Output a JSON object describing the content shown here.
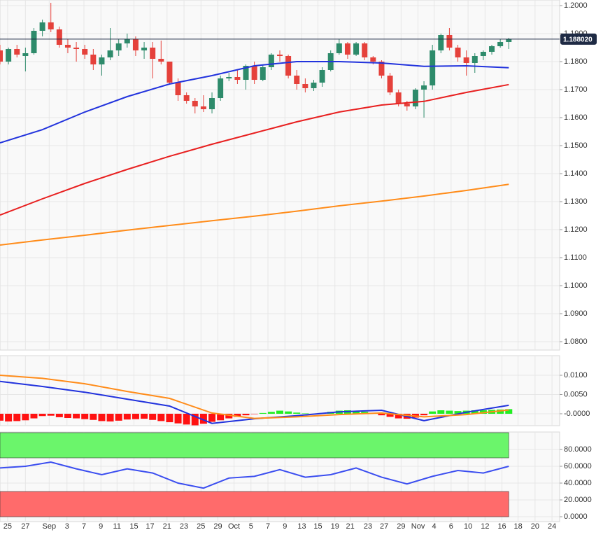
{
  "chart_data": [
    {
      "type": "candlestick",
      "xlim": [
        0,
        66
      ],
      "ylim": [
        1.077,
        1.202
      ],
      "yticks": [
        {
          "value": 1.2,
          "label": "1.2000"
        },
        {
          "value": 1.19,
          "label": "1.1900"
        },
        {
          "value": 1.18,
          "label": "1.1800"
        },
        {
          "value": 1.17,
          "label": "1.1700"
        },
        {
          "value": 1.16,
          "label": "1.1600"
        },
        {
          "value": 1.15,
          "label": "1.1500"
        },
        {
          "value": 1.14,
          "label": "1.1400"
        },
        {
          "value": 1.13,
          "label": "1.1300"
        },
        {
          "value": 1.12,
          "label": "1.1200"
        },
        {
          "value": 1.11,
          "label": "1.1100"
        },
        {
          "value": 1.1,
          "label": "1.1000"
        },
        {
          "value": 1.09,
          "label": "1.0900"
        },
        {
          "value": 1.08,
          "label": "1.0800"
        }
      ],
      "up_color": "#2e8b6b",
      "down_color": "#e5413b",
      "open": [
        1.184,
        1.18,
        1.1845,
        1.182,
        1.183,
        1.191,
        1.194,
        1.1915,
        1.186,
        1.185,
        1.1845,
        1.1825,
        1.179,
        1.1815,
        1.184,
        1.1865,
        1.188,
        1.184,
        1.185,
        1.181,
        1.18,
        1.1725,
        1.168,
        1.166,
        1.164,
        1.163,
        1.167,
        1.174,
        1.1745,
        1.1735,
        1.1785,
        1.1735,
        1.178,
        1.1825,
        1.182,
        1.175,
        1.172,
        1.1705,
        1.1725,
        1.177,
        1.183,
        1.1865,
        1.1825,
        1.1865,
        1.1815,
        1.18,
        1.175,
        1.169,
        1.165,
        1.164,
        1.17,
        1.1715,
        1.184,
        1.1895,
        1.185,
        1.1815,
        1.1795,
        1.182,
        1.1835,
        1.1855,
        1.187
      ],
      "high": [
        1.186,
        1.185,
        1.186,
        1.185,
        1.192,
        1.195,
        1.201,
        1.1925,
        1.188,
        1.187,
        1.186,
        1.1845,
        1.1825,
        1.192,
        1.188,
        1.19,
        1.189,
        1.187,
        1.187,
        1.1875,
        1.18,
        1.174,
        1.169,
        1.167,
        1.168,
        1.169,
        1.175,
        1.176,
        1.177,
        1.179,
        1.18,
        1.179,
        1.183,
        1.184,
        1.1825,
        1.177,
        1.174,
        1.1735,
        1.178,
        1.184,
        1.188,
        1.187,
        1.187,
        1.187,
        1.182,
        1.1805,
        1.176,
        1.17,
        1.166,
        1.1705,
        1.173,
        1.186,
        1.19,
        1.192,
        1.186,
        1.184,
        1.183,
        1.184,
        1.186,
        1.188,
        1.1885
      ],
      "low": [
        1.179,
        1.179,
        1.1815,
        1.1765,
        1.1825,
        1.189,
        1.1905,
        1.185,
        1.183,
        1.18,
        1.181,
        1.177,
        1.175,
        1.1805,
        1.182,
        1.185,
        1.182,
        1.181,
        1.174,
        1.179,
        1.172,
        1.166,
        1.165,
        1.1615,
        1.162,
        1.1615,
        1.166,
        1.173,
        1.172,
        1.17,
        1.172,
        1.173,
        1.177,
        1.18,
        1.174,
        1.17,
        1.169,
        1.1695,
        1.171,
        1.1765,
        1.1825,
        1.181,
        1.182,
        1.1805,
        1.179,
        1.174,
        1.168,
        1.164,
        1.1625,
        1.163,
        1.16,
        1.17,
        1.183,
        1.184,
        1.18,
        1.175,
        1.176,
        1.1805,
        1.1825,
        1.185,
        1.1845
      ],
      "close": [
        1.18,
        1.1845,
        1.1825,
        1.183,
        1.191,
        1.194,
        1.1915,
        1.186,
        1.185,
        1.1845,
        1.1825,
        1.179,
        1.1815,
        1.184,
        1.1865,
        1.188,
        1.184,
        1.185,
        1.181,
        1.18,
        1.1725,
        1.168,
        1.166,
        1.164,
        1.163,
        1.167,
        1.174,
        1.1745,
        1.1735,
        1.1785,
        1.1735,
        1.178,
        1.1825,
        1.182,
        1.175,
        1.172,
        1.1705,
        1.1725,
        1.177,
        1.183,
        1.1865,
        1.1825,
        1.1865,
        1.1815,
        1.18,
        1.175,
        1.169,
        1.165,
        1.164,
        1.17,
        1.1715,
        1.184,
        1.1895,
        1.185,
        1.1815,
        1.1795,
        1.182,
        1.1835,
        1.1855,
        1.187,
        1.188
      ],
      "series": [
        {
          "color": "#2233dd",
          "x": [
            0,
            5,
            10,
            15,
            20,
            25,
            30,
            35,
            40,
            45,
            50,
            55,
            60
          ],
          "values": [
            1.151,
            1.1557,
            1.162,
            1.1675,
            1.172,
            1.175,
            1.1785,
            1.18,
            1.18,
            1.1795,
            1.1783,
            1.1785,
            1.1778
          ]
        },
        {
          "color": "#e82020",
          "x": [
            0,
            5,
            10,
            15,
            20,
            25,
            30,
            35,
            40,
            45,
            50,
            55,
            60
          ],
          "values": [
            1.1252,
            1.131,
            1.1365,
            1.1415,
            1.1462,
            1.1505,
            1.1545,
            1.1585,
            1.162,
            1.1645,
            1.1658,
            1.169,
            1.1718
          ]
        },
        {
          "color": "#ff8c1a",
          "x": [
            0,
            5,
            10,
            15,
            20,
            25,
            30,
            35,
            40,
            45,
            50,
            55,
            60
          ],
          "values": [
            1.1145,
            1.1163,
            1.118,
            1.1198,
            1.1215,
            1.1232,
            1.1248,
            1.1266,
            1.1285,
            1.1302,
            1.132,
            1.134,
            1.1362
          ]
        }
      ],
      "last_price": {
        "value": 1.18802,
        "label": "1.188020"
      }
    },
    {
      "type": "macd",
      "xlim": [
        0,
        66
      ],
      "ylim": [
        -0.0031,
        0.0151
      ],
      "yticks": [
        {
          "value": 0.01,
          "label": "0.0100"
        },
        {
          "value": 0.005,
          "label": "0.0050"
        },
        {
          "value": 0,
          "label": "-0.0000"
        }
      ],
      "up_color": "#22ee22",
      "down_color": "#ff1111",
      "values": [
        -0.0018,
        -0.002,
        -0.0019,
        -0.0017,
        -0.0012,
        -0.0006,
        -0.0005,
        -0.0009,
        -0.0011,
        -0.0012,
        -0.0014,
        -0.0016,
        -0.0019,
        -0.002,
        -0.0018,
        -0.0015,
        -0.0014,
        -0.0013,
        -0.0016,
        -0.0019,
        -0.0022,
        -0.0025,
        -0.0028,
        -0.003,
        -0.0026,
        -0.0021,
        -0.0017,
        -0.0012,
        -0.0008,
        -0.0004,
        -0.0001,
        0.0002,
        0.0005,
        0.0008,
        0.0006,
        0.0003,
        0.0001,
        -0.0001,
        0.0002,
        0.0005,
        0.0008,
        0.0009,
        0.0007,
        0.0005,
        0.0002,
        -0.0004,
        -0.0008,
        -0.0012,
        -0.0013,
        -0.001,
        -0.0004,
        0.0006,
        0.0009,
        0.0008,
        0.0007,
        0.0008,
        0.0009,
        0.0009,
        0.001,
        0.0011,
        0.0012
      ],
      "series": [
        {
          "color": "#2233dd",
          "x": [
            0,
            5,
            10,
            15,
            20,
            25,
            30,
            35,
            40,
            45,
            50,
            55,
            60
          ],
          "values": [
            0.0084,
            0.0071,
            0.0056,
            0.0038,
            0.002,
            -0.0025,
            -0.0013,
            -0.0005,
            0.0005,
            0.0009,
            -0.0018,
            0.0004,
            0.0022
          ]
        },
        {
          "color": "#ff8c1a",
          "x": [
            0,
            5,
            10,
            15,
            20,
            25,
            30,
            35,
            40,
            45,
            50,
            55,
            60
          ],
          "values": [
            0.01,
            0.0092,
            0.0078,
            0.0058,
            0.004,
            0.0002,
            -0.0012,
            -0.0008,
            -0.0002,
            0.0002,
            -0.0008,
            -0.0002,
            0.001
          ]
        }
      ]
    },
    {
      "type": "rsi",
      "xlim": [
        0,
        66
      ],
      "ylim": [
        -5.8,
        100.8
      ],
      "yticks": [
        {
          "value": 80,
          "label": "80.0000"
        },
        {
          "value": 60,
          "label": "60.0000"
        },
        {
          "value": 40,
          "label": "40.0000"
        },
        {
          "value": 20,
          "label": "20.0000"
        },
        {
          "value": 0,
          "label": "0.0000"
        }
      ],
      "zones": [
        {
          "from": 70,
          "to": 100,
          "color": "#6bf56b"
        },
        {
          "from": 0,
          "to": 30,
          "color": "#ff6b6b"
        }
      ],
      "series": [
        {
          "color": "#3b4ef0",
          "x": [
            0,
            3,
            6,
            9,
            12,
            15,
            18,
            21,
            24,
            27,
            30,
            33,
            36,
            39,
            42,
            45,
            48,
            51,
            54,
            57,
            60
          ],
          "values": [
            58,
            60,
            65,
            57,
            50,
            57,
            52,
            40,
            34,
            46,
            48,
            56,
            47,
            50,
            58,
            47,
            39,
            48,
            55,
            52,
            60
          ]
        }
      ],
      "xticks": [
        {
          "value": 0.9,
          "label": "25"
        },
        {
          "value": 3.0,
          "label": "27"
        },
        {
          "value": 5.8,
          "label": "Sep"
        },
        {
          "value": 7.9,
          "label": "3"
        },
        {
          "value": 9.9,
          "label": "7"
        },
        {
          "value": 11.9,
          "label": "9"
        },
        {
          "value": 13.8,
          "label": "11"
        },
        {
          "value": 15.8,
          "label": "15"
        },
        {
          "value": 17.7,
          "label": "17"
        },
        {
          "value": 19.7,
          "label": "21"
        },
        {
          "value": 21.7,
          "label": "23"
        },
        {
          "value": 23.7,
          "label": "25"
        },
        {
          "value": 25.7,
          "label": "29"
        },
        {
          "value": 27.6,
          "label": "Oct"
        },
        {
          "value": 29.6,
          "label": "5"
        },
        {
          "value": 31.6,
          "label": "7"
        },
        {
          "value": 33.6,
          "label": "9"
        },
        {
          "value": 35.6,
          "label": "13"
        },
        {
          "value": 37.5,
          "label": "15"
        },
        {
          "value": 39.5,
          "label": "19"
        },
        {
          "value": 41.3,
          "label": "21"
        },
        {
          "value": 43.4,
          "label": "23"
        },
        {
          "value": 45.3,
          "label": "27"
        },
        {
          "value": 47.3,
          "label": "29"
        },
        {
          "value": 49.3,
          "label": "Nov"
        },
        {
          "value": 51.2,
          "label": "4"
        },
        {
          "value": 53.2,
          "label": "6"
        },
        {
          "value": 55.2,
          "label": "10"
        },
        {
          "value": 57.2,
          "label": "12"
        },
        {
          "value": 59.2,
          "label": "16"
        },
        {
          "value": 61.1,
          "label": "18"
        },
        {
          "value": 63.1,
          "label": "20"
        },
        {
          "value": 65.1,
          "label": "24"
        }
      ]
    }
  ]
}
